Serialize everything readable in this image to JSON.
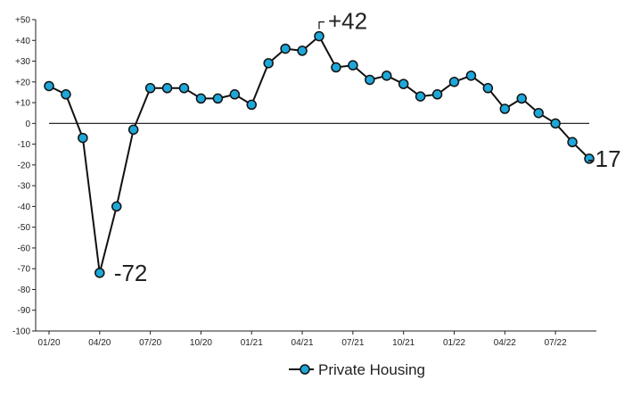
{
  "chart_data": {
    "type": "line",
    "x": [
      "01/20",
      "02/20",
      "03/20",
      "04/20",
      "05/20",
      "06/20",
      "07/20",
      "08/20",
      "09/20",
      "10/20",
      "11/20",
      "12/20",
      "01/21",
      "02/21",
      "03/21",
      "04/21",
      "05/21",
      "06/21",
      "07/21",
      "08/21",
      "09/21",
      "10/21",
      "11/21",
      "12/21",
      "01/22",
      "02/22",
      "03/22",
      "04/22",
      "05/22",
      "06/22",
      "07/22",
      "08/22",
      "09/22"
    ],
    "series": [
      {
        "name": "Private Housing",
        "values": [
          18,
          14,
          -7,
          -72,
          -40,
          -3,
          17,
          17,
          17,
          12,
          12,
          14,
          9,
          29,
          36,
          35,
          42,
          27,
          28,
          21,
          23,
          19,
          13,
          14,
          20,
          23,
          17,
          7,
          12,
          5,
          0,
          -9,
          -17
        ],
        "color": "#1ea7d8"
      }
    ],
    "x_tick_labels": [
      "01/20",
      "04/20",
      "07/20",
      "10/20",
      "01/21",
      "04/21",
      "07/21",
      "10/21",
      "01/22",
      "04/22",
      "07/22"
    ],
    "y_tick_labels": [
      "+50",
      "+40",
      "+30",
      "+20",
      "+10",
      "0",
      "-10",
      "-20",
      "-30",
      "-40",
      "-50",
      "-60",
      "-70",
      "-80",
      "-90",
      "-100"
    ],
    "ylim": [
      -100,
      50
    ],
    "annotations": [
      {
        "text": "+42",
        "index": 16
      },
      {
        "text": "-72",
        "index": 3
      },
      {
        "text": "-17",
        "index": 32
      }
    ],
    "legend_position": "bottom-center",
    "grid": false,
    "zero_line": true
  }
}
